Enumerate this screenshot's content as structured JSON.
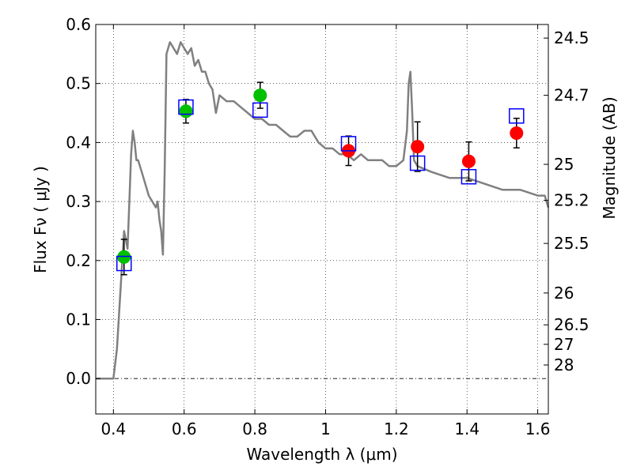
{
  "chart_data": {
    "type": "scatter",
    "xlabel": "Wavelength  λ (μm)",
    "ylabel": "Flux  Fν  ( μJy )",
    "y2label": "Magnitude (AB)",
    "xlim": [
      0.35,
      1.63
    ],
    "ylim": [
      -0.06,
      0.6
    ],
    "x_ticks": [
      0.4,
      0.6,
      0.8,
      1.0,
      1.2,
      1.4,
      1.6
    ],
    "x_tick_labels": [
      "0.4",
      "0.6",
      "0.8",
      "1",
      "1.2",
      "1.4",
      "1.6"
    ],
    "y_ticks": [
      0.0,
      0.1,
      0.2,
      0.3,
      0.4,
      0.5,
      0.6
    ],
    "y_tick_labels": [
      "0.0",
      "0.1",
      "0.2",
      "0.3",
      "0.4",
      "0.5",
      "0.6"
    ],
    "right_axis_ticks": [
      {
        "label": "24.5",
        "flux": 0.577
      },
      {
        "label": "24.7",
        "flux": 0.48
      },
      {
        "label": "25",
        "flux": 0.363
      },
      {
        "label": "25.2",
        "flux": 0.302
      },
      {
        "label": "25.5",
        "flux": 0.229
      },
      {
        "label": "26",
        "flux": 0.145
      },
      {
        "label": "26.5",
        "flux": 0.091
      },
      {
        "label": "27",
        "flux": 0.058
      },
      {
        "label": "28",
        "flux": 0.023
      }
    ],
    "grid": true,
    "zero_line": true,
    "model_spectrum": {
      "color": "#808080",
      "x": [
        0.35,
        0.39,
        0.4,
        0.41,
        0.42,
        0.43,
        0.44,
        0.445,
        0.45,
        0.455,
        0.46,
        0.465,
        0.47,
        0.48,
        0.49,
        0.5,
        0.51,
        0.52,
        0.525,
        0.53,
        0.535,
        0.54,
        0.545,
        0.55,
        0.56,
        0.57,
        0.58,
        0.59,
        0.6,
        0.61,
        0.62,
        0.63,
        0.64,
        0.65,
        0.66,
        0.67,
        0.68,
        0.69,
        0.7,
        0.72,
        0.74,
        0.76,
        0.78,
        0.8,
        0.82,
        0.84,
        0.86,
        0.88,
        0.9,
        0.92,
        0.94,
        0.96,
        0.98,
        1.0,
        1.02,
        1.04,
        1.06,
        1.08,
        1.1,
        1.12,
        1.14,
        1.16,
        1.18,
        1.2,
        1.22,
        1.23,
        1.235,
        1.24,
        1.245,
        1.25,
        1.26,
        1.3,
        1.35,
        1.4,
        1.45,
        1.5,
        1.55,
        1.6,
        1.62,
        1.63
      ],
      "y": [
        0.0,
        0.0,
        0.0,
        0.05,
        0.15,
        0.25,
        0.22,
        0.3,
        0.38,
        0.42,
        0.4,
        0.37,
        0.37,
        0.35,
        0.33,
        0.31,
        0.3,
        0.29,
        0.3,
        0.27,
        0.25,
        0.21,
        0.35,
        0.55,
        0.57,
        0.56,
        0.55,
        0.57,
        0.56,
        0.55,
        0.56,
        0.53,
        0.54,
        0.52,
        0.52,
        0.5,
        0.49,
        0.45,
        0.48,
        0.47,
        0.47,
        0.46,
        0.45,
        0.44,
        0.44,
        0.43,
        0.43,
        0.42,
        0.41,
        0.41,
        0.42,
        0.42,
        0.4,
        0.39,
        0.39,
        0.38,
        0.38,
        0.37,
        0.38,
        0.37,
        0.37,
        0.37,
        0.36,
        0.36,
        0.37,
        0.42,
        0.5,
        0.52,
        0.45,
        0.37,
        0.36,
        0.35,
        0.34,
        0.34,
        0.33,
        0.32,
        0.32,
        0.31,
        0.31,
        0.29
      ]
    },
    "series": [
      {
        "color": "#00c000",
        "marker": "circle",
        "x": [
          0.43,
          0.605,
          0.815
        ],
        "y": [
          0.206,
          0.453,
          0.48
        ],
        "err": [
          0.03,
          0.02,
          0.022
        ]
      },
      {
        "color": "#ff0000",
        "marker": "circle",
        "x": [
          1.065,
          1.26,
          1.405,
          1.54
        ],
        "y": [
          0.386,
          0.393,
          0.368,
          0.416
        ],
        "err": [
          0.025,
          0.042,
          0.033,
          0.025
        ]
      },
      {
        "color": "#0000ff",
        "marker": "open-square",
        "x": [
          0.43,
          0.605,
          0.815,
          1.065,
          1.26,
          1.405,
          1.54
        ],
        "y": [
          0.195,
          0.46,
          0.455,
          0.398,
          0.365,
          0.342,
          0.445
        ]
      }
    ]
  }
}
